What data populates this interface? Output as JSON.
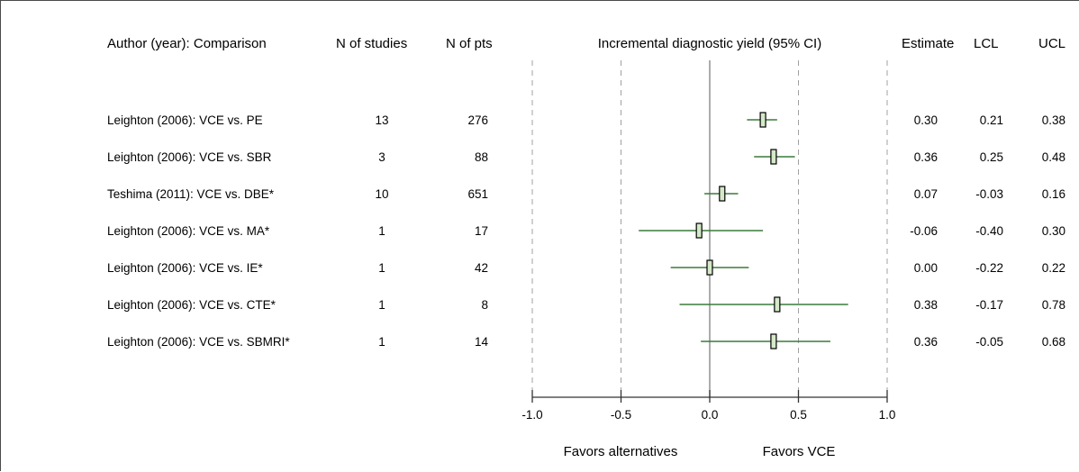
{
  "headers": {
    "author": "Author (year): Comparison",
    "n_studies": "N of studies",
    "n_pts": "N of pts",
    "plot": "Incremental diagnostic yield (95% CI)",
    "estimate": "Estimate",
    "lcl": "LCL",
    "ucl": "UCL"
  },
  "favors": {
    "left": "Favors alternatives",
    "right": "Favors VCE"
  },
  "colors": {
    "ci_line": "#3a7a3a",
    "box_fill": "#d4e9c8",
    "box_stroke": "#000000",
    "axis": "#333333",
    "ref_dash": "#a0a0a0",
    "zero_line": "#808080"
  },
  "chart_data": {
    "type": "forest",
    "title": "Incremental diagnostic yield (95% CI)",
    "xlim": [
      -1.0,
      1.0
    ],
    "x_ticks": [
      "-1.0",
      "-0.5",
      "0.0",
      "0.5",
      "1.0"
    ],
    "x_tick_values": [
      -1.0,
      -0.5,
      0.0,
      0.5,
      1.0
    ],
    "dashed_reference_lines": [
      -1.0,
      -0.5,
      0.5,
      1.0
    ],
    "solid_reference_line": 0.0,
    "rows": [
      {
        "label": "Leighton (2006): VCE vs. PE",
        "n_studies": "13",
        "n_pts": "276",
        "estimate": 0.3,
        "lcl": 0.21,
        "ucl": 0.38,
        "estimate_text": "0.30",
        "lcl_text": "0.21",
        "ucl_text": "0.38"
      },
      {
        "label": "Leighton (2006): VCE vs. SBR",
        "n_studies": "3",
        "n_pts": "88",
        "estimate": 0.36,
        "lcl": 0.25,
        "ucl": 0.48,
        "estimate_text": "0.36",
        "lcl_text": "0.25",
        "ucl_text": "0.48"
      },
      {
        "label": "Teshima (2011): VCE vs. DBE*",
        "n_studies": "10",
        "n_pts": "651",
        "estimate": 0.07,
        "lcl": -0.03,
        "ucl": 0.16,
        "estimate_text": "0.07",
        "lcl_text": "-0.03",
        "ucl_text": "0.16"
      },
      {
        "label": "Leighton (2006): VCE vs. MA*",
        "n_studies": "1",
        "n_pts": "17",
        "estimate": -0.06,
        "lcl": -0.4,
        "ucl": 0.3,
        "estimate_text": "-0.06",
        "lcl_text": "-0.40",
        "ucl_text": "0.30"
      },
      {
        "label": "Leighton (2006): VCE vs. IE*",
        "n_studies": "1",
        "n_pts": "42",
        "estimate": 0.0,
        "lcl": -0.22,
        "ucl": 0.22,
        "estimate_text": "0.00",
        "lcl_text": "-0.22",
        "ucl_text": "0.22"
      },
      {
        "label": "Leighton (2006): VCE vs. CTE*",
        "n_studies": "1",
        "n_pts": "8",
        "estimate": 0.38,
        "lcl": -0.17,
        "ucl": 0.78,
        "estimate_text": "0.38",
        "lcl_text": "-0.17",
        "ucl_text": "0.78"
      },
      {
        "label": "Leighton (2006): VCE vs. SBMRI*",
        "n_studies": "1",
        "n_pts": "14",
        "estimate": 0.36,
        "lcl": -0.05,
        "ucl": 0.68,
        "estimate_text": "0.36",
        "lcl_text": "-0.05",
        "ucl_text": "0.68"
      }
    ]
  }
}
